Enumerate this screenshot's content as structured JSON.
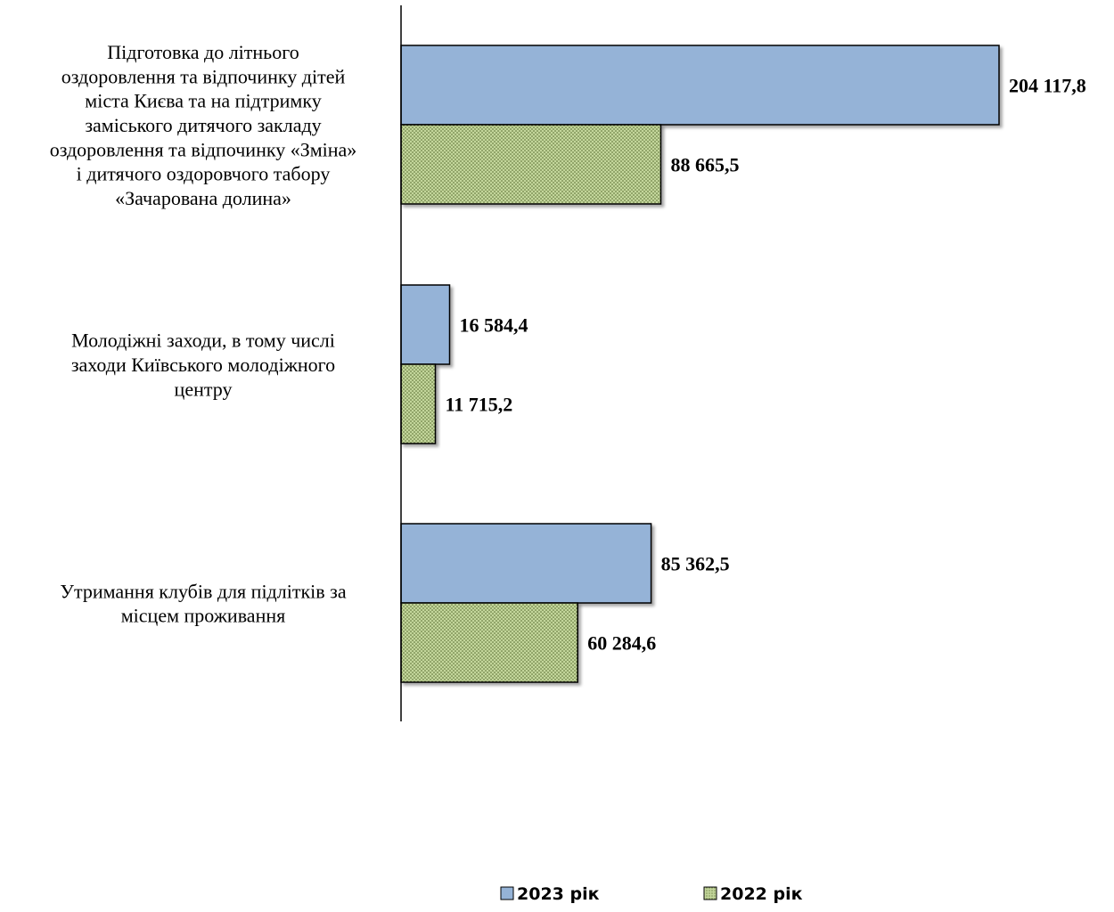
{
  "chart_data": {
    "type": "bar",
    "orientation": "horizontal",
    "categories": [
      [
        "Підготовка  до  літнього",
        "оздоровлення та відпочинку дітей",
        "міста Києва та на підтримку",
        "заміського дитячого закладу",
        "оздоровлення та відпочинку «Зміна»",
        "і дитячого оздоровчого табору",
        "«Зачарована долина»"
      ],
      [
        "Молодіжні заходи,  в тому числі",
        "заходи Київського молодіжного",
        "центру"
      ],
      [
        "Утримання клубів для підлітків  за",
        "місцем проживання"
      ]
    ],
    "series": [
      {
        "name": "2023 рік",
        "color": "#95b3d7",
        "pattern": "solid",
        "values": [
          204117.8,
          16584.4,
          85362.5
        ],
        "labels": [
          "204 117,8",
          "16 584,4",
          "85 362,5"
        ]
      },
      {
        "name": "2022 рік",
        "color": "#c3d69b",
        "pattern": "dotted",
        "values": [
          88665.5,
          11715.2,
          60284.6
        ],
        "labels": [
          "88 665,5",
          "11 715,2",
          "60 284,6"
        ]
      }
    ],
    "xlim": [
      0,
      204117.8
    ],
    "grid": false,
    "legend_position": "bottom"
  }
}
